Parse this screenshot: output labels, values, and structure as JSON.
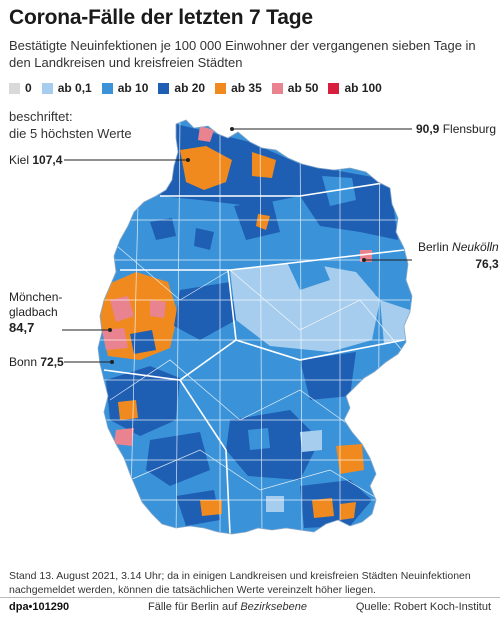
{
  "title": "Corona-Fälle der letzten 7 Tage",
  "subtitle": "Bestätigte Neuinfektionen je 100 000 Einwohner der vergangenen sieben Tage in den Landkreisen und kreisfreien Städten",
  "legend": [
    {
      "label": "0",
      "color": "#d9d9d9"
    },
    {
      "label": "ab 0,1",
      "color": "#a6cdee"
    },
    {
      "label": "ab 10",
      "color": "#3a93d9"
    },
    {
      "label": "ab 20",
      "color": "#1f5fb3"
    },
    {
      "label": "ab 35",
      "color": "#f08a1e"
    },
    {
      "label": "ab 50",
      "color": "#e9838f"
    },
    {
      "label": "ab 100",
      "color": "#d81e3e"
    }
  ],
  "label_note": {
    "line1": "beschriftet:",
    "line2": "die 5 höchsten Werte"
  },
  "callouts": {
    "flensburg": {
      "value": "90,9",
      "name": "Flensburg"
    },
    "kiel": {
      "name": "Kiel",
      "value": "107,4"
    },
    "berlin": {
      "name": "Berlin",
      "district": "Neukölln",
      "value": "76,3"
    },
    "moenchengladbach": {
      "line1": "Mönchen-",
      "line2": "gladbach",
      "value": "84,7"
    },
    "bonn": {
      "name": "Bonn",
      "value": "72,5"
    }
  },
  "footnote": "Stand 13. August 2021, 3.14 Uhr; da in einigen Landkreisen und kreisfreien Städten Neuinfektionen nachgemeldet werden, können die tatsächlichen Werte vereinzelt höher liegen.",
  "footer": {
    "dpa": "dpa•101290",
    "berlin_note_prefix": "Fälle für Berlin auf",
    "berlin_note_em": "Bezirksebene",
    "source": "Quelle: Robert Koch-Institut"
  }
}
